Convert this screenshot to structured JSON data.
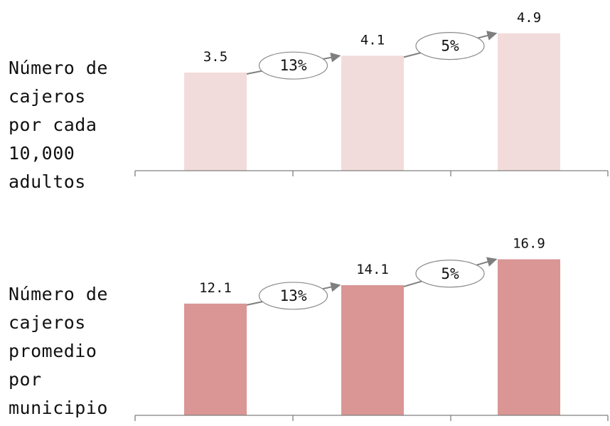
{
  "chart_data": [
    {
      "type": "bar",
      "row_label": [
        "Número de",
        "cajeros",
        "por cada",
        "10,000",
        "adultos"
      ],
      "categories": [
        "",
        "",
        ""
      ],
      "values": [
        3.5,
        4.1,
        4.9
      ],
      "value_labels": [
        "3.5",
        "4.1",
        "4.9"
      ],
      "growth_labels": [
        "13%",
        "5%"
      ],
      "ylim": [
        0,
        5.2
      ],
      "color": "#f2dcdb"
    },
    {
      "type": "bar",
      "row_label": [
        "Número de",
        "cajeros",
        "promedio",
        "por",
        "municipio"
      ],
      "categories": [
        "",
        "",
        ""
      ],
      "values": [
        12.1,
        14.1,
        16.9
      ],
      "value_labels": [
        "12.1",
        "14.1",
        "16.9"
      ],
      "growth_labels": [
        "13%",
        "5%"
      ],
      "ylim": [
        0,
        18.1
      ],
      "color": "#d99694"
    }
  ],
  "colors": {
    "axis": "#808080",
    "arrow": "#7f7f7f",
    "text": "#111111"
  }
}
